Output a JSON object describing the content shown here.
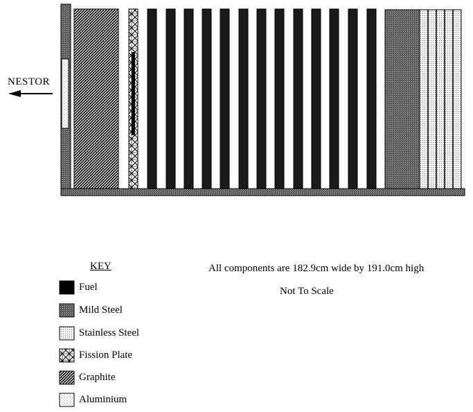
{
  "diagram": {
    "nestor_label": "NESTOR",
    "key_title": "KEY",
    "note_dimensions": "All components are 182.9cm wide by 191.0cm high",
    "note_scale": "Not To Scale",
    "legend": [
      {
        "id": "fuel",
        "label": "Fuel",
        "pattern": "solid-black"
      },
      {
        "id": "mild-steel",
        "label": "Mild Steel",
        "pattern": "dense-dots"
      },
      {
        "id": "stainless-steel",
        "label": "Stainless Steel",
        "pattern": "fine-dots"
      },
      {
        "id": "fission-plate",
        "label": "Fission Plate",
        "pattern": "crosshatch-x"
      },
      {
        "id": "graphite",
        "label": "Graphite",
        "pattern": "diagonal-hatch"
      },
      {
        "id": "aluminium",
        "label": "Aluminium",
        "pattern": "light-dots"
      }
    ]
  }
}
